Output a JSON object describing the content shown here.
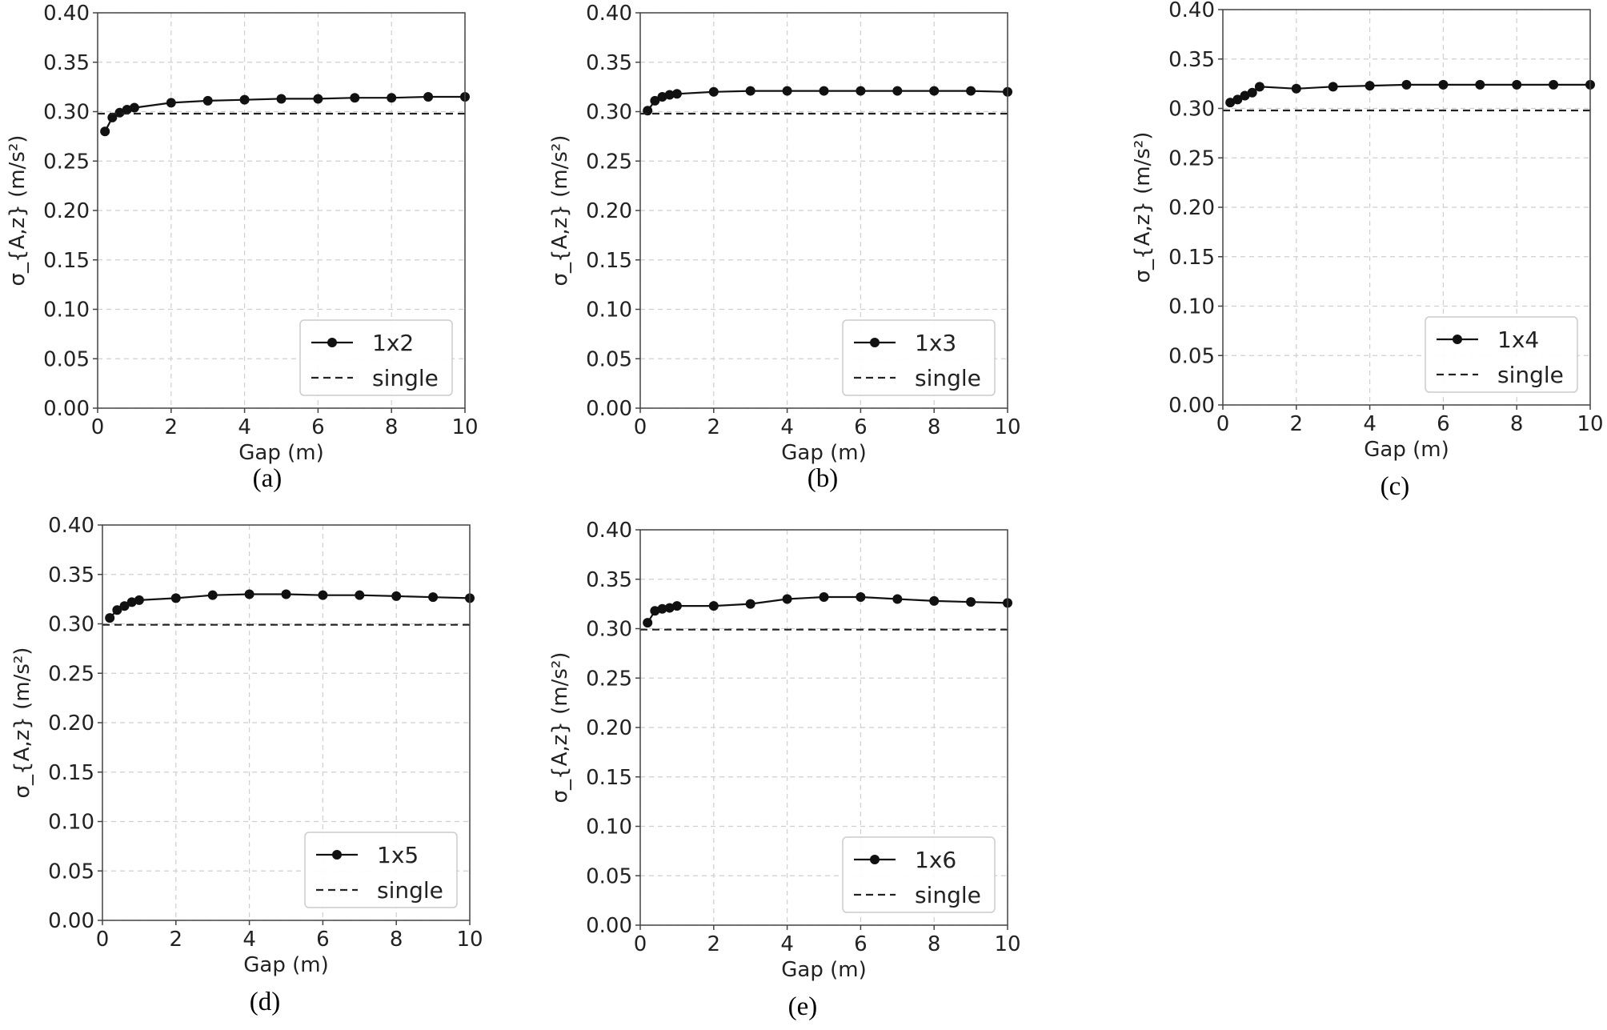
{
  "chart_data": [
    {
      "type": "line",
      "caption": "(a)",
      "xlabel": "Gap (m)",
      "ylabel": "σ_{A,z} (m/s²)",
      "xlim": [
        0,
        10
      ],
      "ylim": [
        0,
        0.4
      ],
      "xticks": [
        "0",
        "2",
        "4",
        "6",
        "8",
        "10"
      ],
      "yticks": [
        "0.00",
        "0.05",
        "0.10",
        "0.15",
        "0.20",
        "0.25",
        "0.30",
        "0.35",
        "0.40"
      ],
      "grid": true,
      "legend_position": "lower right",
      "series": [
        {
          "name": "1x2",
          "style": "solid-marker",
          "x": [
            0.2,
            0.4,
            0.6,
            0.8,
            1,
            2,
            3,
            4,
            5,
            6,
            7,
            8,
            9,
            10
          ],
          "values": [
            0.28,
            0.294,
            0.299,
            0.302,
            0.304,
            0.309,
            0.311,
            0.312,
            0.313,
            0.313,
            0.314,
            0.314,
            0.315,
            0.315
          ]
        },
        {
          "name": "single",
          "style": "dashed",
          "x": [
            0,
            10
          ],
          "values": [
            0.298,
            0.298
          ]
        }
      ]
    },
    {
      "type": "line",
      "caption": "(b)",
      "xlabel": "Gap (m)",
      "ylabel": "σ_{A,z} (m/s²)",
      "xlim": [
        0,
        10
      ],
      "ylim": [
        0,
        0.4
      ],
      "xticks": [
        "0",
        "2",
        "4",
        "6",
        "8",
        "10"
      ],
      "yticks": [
        "0.00",
        "0.05",
        "0.10",
        "0.15",
        "0.20",
        "0.25",
        "0.30",
        "0.35",
        "0.40"
      ],
      "grid": true,
      "legend_position": "lower right",
      "series": [
        {
          "name": "1x3",
          "style": "solid-marker",
          "x": [
            0.2,
            0.4,
            0.6,
            0.8,
            1,
            2,
            3,
            4,
            5,
            6,
            7,
            8,
            9,
            10
          ],
          "values": [
            0.301,
            0.311,
            0.315,
            0.317,
            0.318,
            0.32,
            0.321,
            0.321,
            0.321,
            0.321,
            0.321,
            0.321,
            0.321,
            0.32
          ]
        },
        {
          "name": "single",
          "style": "dashed",
          "x": [
            0,
            10
          ],
          "values": [
            0.298,
            0.298
          ]
        }
      ]
    },
    {
      "type": "line",
      "caption": "(c)",
      "xlabel": "Gap (m)",
      "ylabel": "σ_{A,z} (m/s²)",
      "xlim": [
        0,
        10
      ],
      "ylim": [
        0,
        0.4
      ],
      "xticks": [
        "0",
        "2",
        "4",
        "6",
        "8",
        "10"
      ],
      "yticks": [
        "0.00",
        "0.05",
        "0.10",
        "0.15",
        "0.20",
        "0.25",
        "0.30",
        "0.35",
        "0.40"
      ],
      "grid": true,
      "legend_position": "lower right",
      "series": [
        {
          "name": "1x4",
          "style": "solid-marker",
          "x": [
            0.2,
            0.4,
            0.6,
            0.8,
            1,
            2,
            3,
            4,
            5,
            6,
            7,
            8,
            9,
            10
          ],
          "values": [
            0.306,
            0.309,
            0.313,
            0.316,
            0.322,
            0.32,
            0.322,
            0.323,
            0.324,
            0.324,
            0.324,
            0.324,
            0.324,
            0.324
          ]
        },
        {
          "name": "single",
          "style": "dashed",
          "x": [
            0,
            10
          ],
          "values": [
            0.298,
            0.298
          ]
        }
      ]
    },
    {
      "type": "line",
      "caption": "(d)",
      "xlabel": "Gap (m)",
      "ylabel": "σ_{A,z} (m/s²)",
      "xlim": [
        0,
        10
      ],
      "ylim": [
        0,
        0.4
      ],
      "xticks": [
        "0",
        "2",
        "4",
        "6",
        "8",
        "10"
      ],
      "yticks": [
        "0.00",
        "0.05",
        "0.10",
        "0.15",
        "0.20",
        "0.25",
        "0.30",
        "0.35",
        "0.40"
      ],
      "grid": true,
      "legend_position": "lower right",
      "series": [
        {
          "name": "1x5",
          "style": "solid-marker",
          "x": [
            0.2,
            0.4,
            0.6,
            0.8,
            1,
            2,
            3,
            4,
            5,
            6,
            7,
            8,
            9,
            10
          ],
          "values": [
            0.306,
            0.314,
            0.318,
            0.322,
            0.324,
            0.326,
            0.329,
            0.33,
            0.33,
            0.329,
            0.329,
            0.328,
            0.327,
            0.326
          ]
        },
        {
          "name": "single",
          "style": "dashed",
          "x": [
            0,
            10
          ],
          "values": [
            0.299,
            0.299
          ]
        }
      ]
    },
    {
      "type": "line",
      "caption": "(e)",
      "xlabel": "Gap (m)",
      "ylabel": "σ_{A,z} (m/s²)",
      "xlim": [
        0,
        10
      ],
      "ylim": [
        0,
        0.4
      ],
      "xticks": [
        "0",
        "2",
        "4",
        "6",
        "8",
        "10"
      ],
      "yticks": [
        "0.00",
        "0.05",
        "0.10",
        "0.15",
        "0.20",
        "0.25",
        "0.30",
        "0.35",
        "0.40"
      ],
      "grid": true,
      "legend_position": "lower right",
      "series": [
        {
          "name": "1x6",
          "style": "solid-marker",
          "x": [
            0.2,
            0.4,
            0.6,
            0.8,
            1,
            2,
            3,
            4,
            5,
            6,
            7,
            8,
            9,
            10
          ],
          "values": [
            0.306,
            0.318,
            0.32,
            0.321,
            0.323,
            0.323,
            0.325,
            0.33,
            0.332,
            0.332,
            0.33,
            0.328,
            0.327,
            0.326
          ]
        },
        {
          "name": "single",
          "style": "dashed",
          "x": [
            0,
            10
          ],
          "values": [
            0.299,
            0.299
          ]
        }
      ]
    }
  ]
}
